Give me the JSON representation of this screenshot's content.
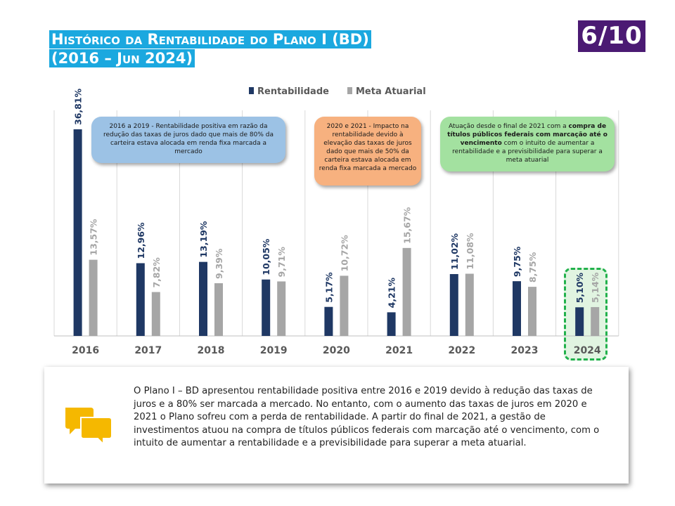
{
  "title": {
    "line1": "Histórico da Rentabilidade do Plano I (BD)",
    "line2": "(2016 – Jun 2024)"
  },
  "page_counter": "6/10",
  "chart_data": {
    "type": "bar",
    "categories": [
      "2016",
      "2017",
      "2018",
      "2019",
      "2020",
      "2021",
      "2022",
      "2023",
      "2024"
    ],
    "series": [
      {
        "name": "Rentabilidade",
        "color": "#1f3864",
        "values": [
          36.81,
          12.96,
          13.19,
          10.05,
          5.17,
          4.21,
          11.02,
          9.75,
          5.1
        ],
        "labels": [
          "36,81%",
          "12,96%",
          "13,19%",
          "10,05%",
          "5,17%",
          "4,21%",
          "11,02%",
          "9,75%",
          "5,10%"
        ]
      },
      {
        "name": "Meta Atuarial",
        "color": "#a6a6a6",
        "values": [
          13.57,
          7.82,
          9.39,
          9.71,
          10.72,
          15.67,
          11.08,
          8.75,
          5.14
        ],
        "labels": [
          "13,57%",
          "7,82%",
          "9,39%",
          "9,71%",
          "10,72%",
          "15,67%",
          "11,08%",
          "8,75%",
          "5,14%"
        ]
      }
    ],
    "legend_position": "top-right",
    "grid": "vertical separators",
    "highlighted_category": "2024"
  },
  "callouts": {
    "blue": {
      "text": "2016 a 2019 - Rentabilidade positiva em razão da redução das taxas de juros dado que mais de 80% da carteira estava alocada em renda fixa marcada a mercado",
      "color": "#9cc2e5"
    },
    "orange": {
      "text": "2020 e 2021 - Impacto na rentabilidade devido à elevação das taxas de juros dado que mais de 50% da carteira estava alocada em renda fixa marcada a mercado",
      "color": "#f7b17f"
    },
    "green": {
      "text_before": "Atuação desde o final de 2021 com a ",
      "text_bold": "compra de títulos públicos federais com marcação até o vencimento",
      "text_after": " com o intuito de aumentar a rentabilidade e a previsibilidade para superar a meta atuarial",
      "color": "#a3e1a0"
    }
  },
  "summary": {
    "icon": "chat-bubbles-icon",
    "text": "O Plano I – BD apresentou rentabilidade positiva entre 2016 e 2019 devido à redução das taxas de juros e a 80% ser marcada a mercado. No entanto, com o aumento das taxas de juros em 2020 e 2021 o Plano sofreu com a perda de rentabilidade. A partir do final de 2021, a gestão de investimentos atuou na compra de títulos públicos federais com marcação até o vencimento, com o intuito de aumentar a rentabilidade e a previsibilidade para superar a meta atuarial."
  },
  "colors": {
    "title_bg": "#1ba8df",
    "counter_bg": "#4b1a73",
    "highlight_border": "#22b14c"
  }
}
